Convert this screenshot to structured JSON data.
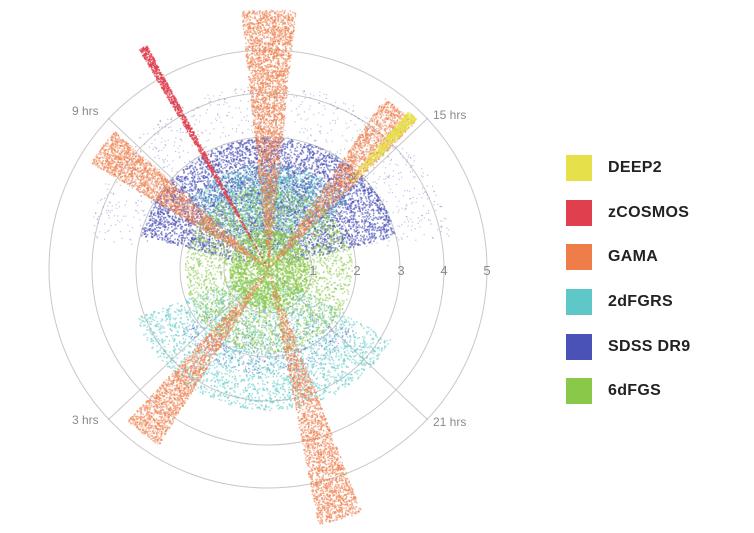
{
  "chart_data": {
    "type": "scatter",
    "projection": "polar wedge map",
    "radial_ticks": [
      "1",
      "2",
      "3",
      "4",
      "5"
    ],
    "radial_range": [
      0,
      5
    ],
    "angle_labels": [
      "9 hrs",
      "15 hrs",
      "3 hrs",
      "21 hrs"
    ],
    "grid": true,
    "legend_placement": "right",
    "legend": [
      {
        "name": "DEEP2",
        "color": "#e6e04a"
      },
      {
        "name": "zCOSMOS",
        "color": "#e0404e"
      },
      {
        "name": "GAMA",
        "color": "#ef7d4a"
      },
      {
        "name": "2dFGRS",
        "color": "#5ec8c8"
      },
      {
        "name": "SDSS DR9",
        "color": "#4a52b8"
      },
      {
        "name": "6dFGS",
        "color": "#8ac84a"
      }
    ]
  }
}
